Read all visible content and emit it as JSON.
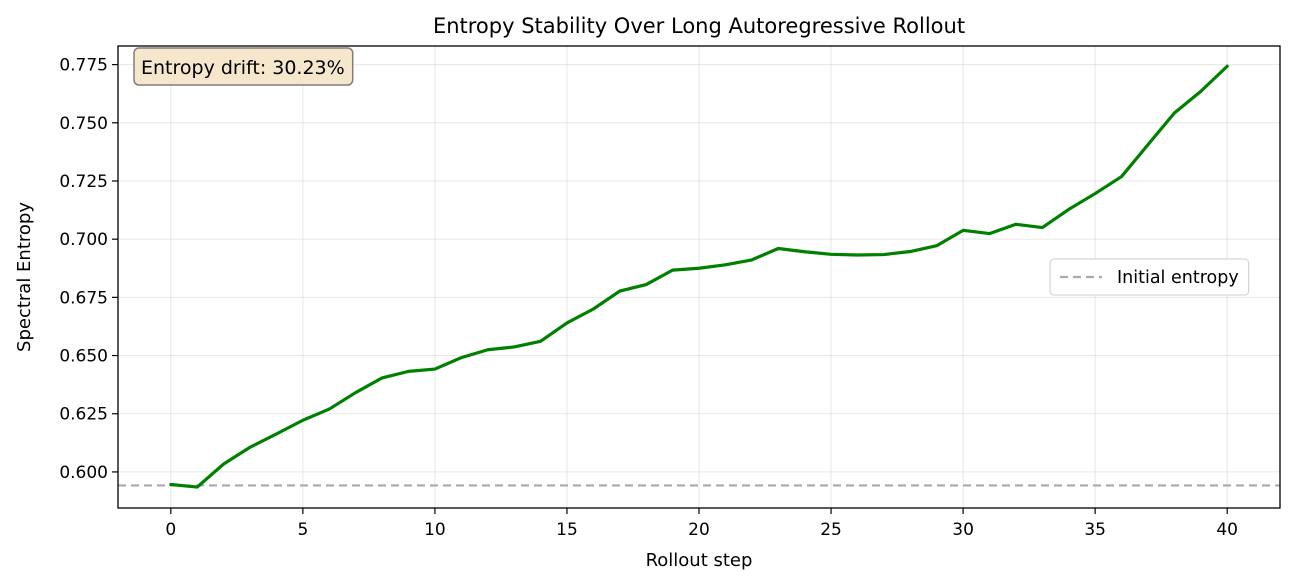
{
  "chart_data": {
    "type": "line",
    "title": "Entropy Stability Over Long Autoregressive Rollout",
    "xlabel": "Rollout step",
    "ylabel": "Spectral Entropy",
    "xlim": [
      -2,
      42
    ],
    "ylim": [
      0.5845,
      0.783
    ],
    "xticks": [
      0,
      5,
      10,
      15,
      20,
      25,
      30,
      35,
      40
    ],
    "yticks": [
      0.6,
      0.625,
      0.65,
      0.675,
      0.7,
      0.725,
      0.75,
      0.775
    ],
    "ytick_labels": [
      "0.600",
      "0.625",
      "0.650",
      "0.675",
      "0.700",
      "0.725",
      "0.750",
      "0.775"
    ],
    "grid": true,
    "x": [
      0,
      1,
      2,
      3,
      4,
      5,
      6,
      7,
      8,
      9,
      10,
      11,
      12,
      13,
      14,
      15,
      16,
      17,
      18,
      19,
      20,
      21,
      22,
      23,
      24,
      25,
      26,
      27,
      28,
      29,
      30,
      31,
      32,
      33,
      34,
      35,
      36,
      37,
      38,
      39,
      40
    ],
    "series": [
      {
        "values": [
          0.5946,
          0.5935,
          0.6034,
          0.6106,
          0.6163,
          0.6222,
          0.627,
          0.6341,
          0.6404,
          0.6432,
          0.6442,
          0.6491,
          0.6525,
          0.6537,
          0.6561,
          0.664,
          0.67,
          0.6777,
          0.6805,
          0.6867,
          0.6875,
          0.689,
          0.6911,
          0.696,
          0.6946,
          0.6935,
          0.6932,
          0.6934,
          0.6947,
          0.6972,
          0.7038,
          0.7024,
          0.7064,
          0.705,
          0.7128,
          0.7196,
          0.7269,
          0.7406,
          0.7542,
          0.7635,
          0.7743
        ],
        "color": "#008000"
      }
    ],
    "reference_line": {
      "name": "Initial entropy",
      "y": 0.5942,
      "color": "#aaaaaa",
      "style": "dashed"
    },
    "annotation": {
      "text": "Entropy drift: 30.23%",
      "position": "top-left"
    },
    "legend": {
      "position": "center-right"
    }
  }
}
